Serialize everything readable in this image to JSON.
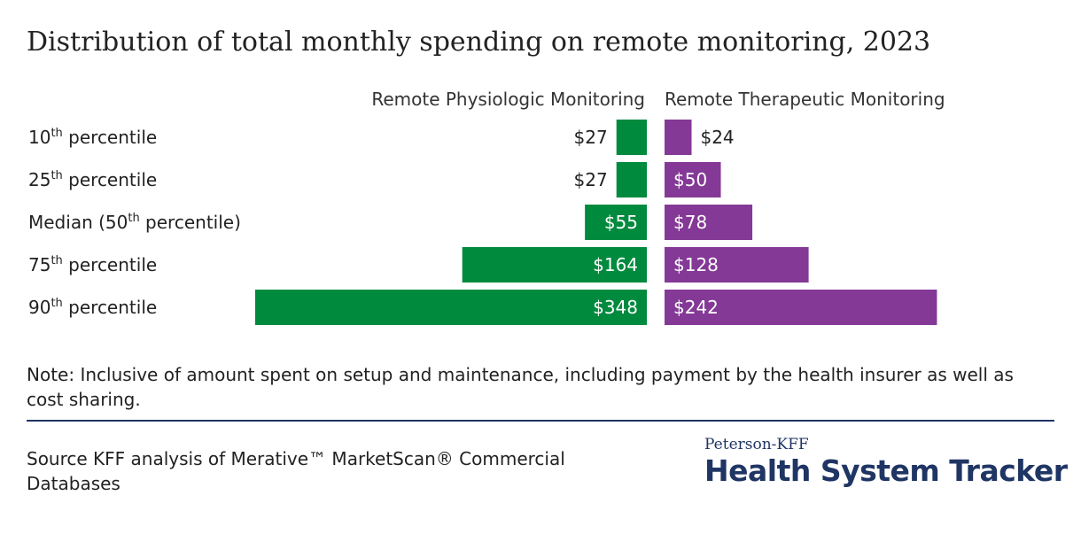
{
  "title": "Distribution of total monthly spending on remote monitoring, 2023",
  "chart_data": {
    "type": "bar",
    "orientation": "horizontal",
    "layout": "back-to-back",
    "categories": [
      {
        "base": "10",
        "sup": "th",
        "rest": " percentile"
      },
      {
        "base": "25",
        "sup": "th",
        "rest": " percentile"
      },
      {
        "base": "Median (50",
        "sup": "th",
        "rest": " percentile)"
      },
      {
        "base": "75",
        "sup": "th",
        "rest": " percentile"
      },
      {
        "base": "90",
        "sup": "th",
        "rest": " percentile"
      }
    ],
    "series": [
      {
        "name": "Remote Physiologic Monitoring",
        "color": "#008a3e",
        "direction": "left",
        "values": [
          27,
          27,
          55,
          164,
          348
        ],
        "labels": [
          "$27",
          "$27",
          "$55",
          "$164",
          "$348"
        ]
      },
      {
        "name": "Remote Therapeutic Monitoring",
        "color": "#843996",
        "direction": "right",
        "values": [
          24,
          50,
          78,
          128,
          242
        ],
        "labels": [
          "$24",
          "$50",
          "$78",
          "$128",
          "$242"
        ]
      }
    ],
    "xlim": [
      0,
      360
    ],
    "grid": false
  },
  "note": "Note: Inclusive of amount spent on setup and maintenance, including payment by the health insurer as well as cost sharing.",
  "source": "Source KFF analysis of Merative™ MarketScan® Commercial Databases",
  "logo": {
    "small": "Peterson-KFF",
    "big": "Health System Tracker"
  }
}
